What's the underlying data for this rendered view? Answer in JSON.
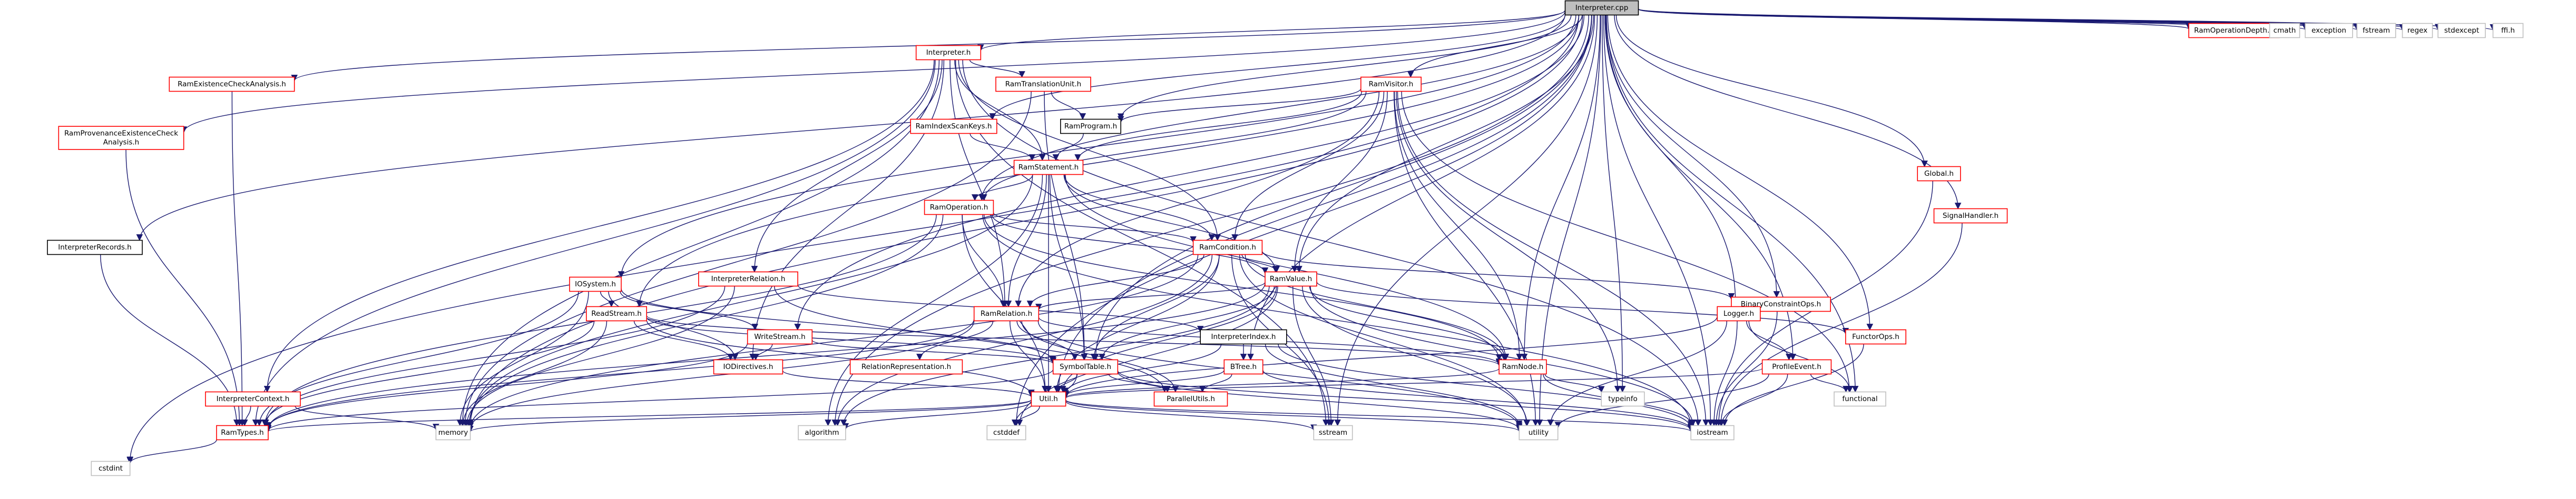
{
  "diagram_data": {
    "type": "include-dependency-graph",
    "colors": {
      "edge": "#191970",
      "border_link": "#bfbfbf",
      "border_red": "#ff0000",
      "border_black": "#000000",
      "root_fill": "#bfbfbf",
      "fill": "#ffffff",
      "text": "#000000"
    },
    "nodes": [
      {
        "id": "interpreter_cpp",
        "label": "Interpreter.cpp",
        "style": "root"
      },
      {
        "id": "ramopdepth",
        "label": "RamOperationDepth.h",
        "style": "red"
      },
      {
        "id": "cmath",
        "label": "cmath",
        "style": "gray"
      },
      {
        "id": "exception",
        "label": "exception",
        "style": "gray"
      },
      {
        "id": "fstream",
        "label": "fstream",
        "style": "gray"
      },
      {
        "id": "regex",
        "label": "regex",
        "style": "gray"
      },
      {
        "id": "stdexcept",
        "label": "stdexcept",
        "style": "gray"
      },
      {
        "id": "ffi_h",
        "label": "ffi.h",
        "style": "gray"
      },
      {
        "id": "interpreter_h",
        "label": "Interpreter.h",
        "style": "red"
      },
      {
        "id": "ramvisitor",
        "label": "RamVisitor.h",
        "style": "red"
      },
      {
        "id": "ramprovenance",
        "label": "RamProvenanceExistenceCheck\nAnalysis.h",
        "style": "red"
      },
      {
        "id": "ramexistence",
        "label": "RamExistenceCheckAnalysis.h",
        "style": "red"
      },
      {
        "id": "ramtranslation",
        "label": "RamTranslationUnit.h",
        "style": "red"
      },
      {
        "id": "ramindexscankeys",
        "label": "RamIndexScanKeys.h",
        "style": "red"
      },
      {
        "id": "ramprogram",
        "label": "RamProgram.h",
        "style": "black"
      },
      {
        "id": "ramstatement",
        "label": "RamStatement.h",
        "style": "red"
      },
      {
        "id": "ramoperation",
        "label": "RamOperation.h",
        "style": "red"
      },
      {
        "id": "ramcondition",
        "label": "RamCondition.h",
        "style": "red"
      },
      {
        "id": "interpreterrecords",
        "label": "InterpreterRecords.h",
        "style": "black"
      },
      {
        "id": "interpreterrelation",
        "label": "InterpreterRelation.h",
        "style": "red"
      },
      {
        "id": "iosystem",
        "label": "IOSystem.h",
        "style": "red"
      },
      {
        "id": "readstream",
        "label": "ReadStream.h",
        "style": "red"
      },
      {
        "id": "writestream",
        "label": "WriteStream.h",
        "style": "red"
      },
      {
        "id": "iodirectives",
        "label": "IODirectives.h",
        "style": "red"
      },
      {
        "id": "interpretercontext",
        "label": "InterpreterContext.h",
        "style": "red"
      },
      {
        "id": "ramvalue",
        "label": "RamValue.h",
        "style": "red"
      },
      {
        "id": "ramrelation",
        "label": "RamRelation.h",
        "style": "red"
      },
      {
        "id": "interpreterindex",
        "label": "InterpreterIndex.h",
        "style": "black"
      },
      {
        "id": "symboltable",
        "label": "SymbolTable.h",
        "style": "red"
      },
      {
        "id": "relationrep",
        "label": "RelationRepresentation.h",
        "style": "red"
      },
      {
        "id": "btree",
        "label": "BTree.h",
        "style": "red"
      },
      {
        "id": "ramnode",
        "label": "RamNode.h",
        "style": "red"
      },
      {
        "id": "functorops",
        "label": "FunctorOps.h",
        "style": "red"
      },
      {
        "id": "binaryconstraintops",
        "label": "BinaryConstraintOps.h",
        "style": "red"
      },
      {
        "id": "logger",
        "label": "Logger.h",
        "style": "red"
      },
      {
        "id": "profileevent",
        "label": "ProfileEvent.h",
        "style": "red"
      },
      {
        "id": "global_h",
        "label": "Global.h",
        "style": "red"
      },
      {
        "id": "signalhandler",
        "label": "SignalHandler.h",
        "style": "red"
      },
      {
        "id": "util_h",
        "label": "Util.h",
        "style": "red"
      },
      {
        "id": "parallelutils",
        "label": "ParallelUtils.h",
        "style": "red"
      },
      {
        "id": "ramtypes",
        "label": "RamTypes.h",
        "style": "red"
      },
      {
        "id": "cstdint",
        "label": "cstdint",
        "style": "gray"
      },
      {
        "id": "memory",
        "label": "memory",
        "style": "gray"
      },
      {
        "id": "algorithm",
        "label": "algorithm",
        "style": "gray"
      },
      {
        "id": "cstddef",
        "label": "cstddef",
        "style": "gray"
      },
      {
        "id": "sstream",
        "label": "sstream",
        "style": "gray"
      },
      {
        "id": "utility",
        "label": "utility",
        "style": "gray"
      },
      {
        "id": "iostream",
        "label": "iostream",
        "style": "gray"
      },
      {
        "id": "typeinfo",
        "label": "typeinfo",
        "style": "gray"
      },
      {
        "id": "functional",
        "label": "functional",
        "style": "gray"
      }
    ],
    "edges": [
      [
        "interpreter_cpp",
        "ramopdepth"
      ],
      [
        "interpreter_cpp",
        "cmath"
      ],
      [
        "interpreter_cpp",
        "exception"
      ],
      [
        "interpreter_cpp",
        "fstream"
      ],
      [
        "interpreter_cpp",
        "regex"
      ],
      [
        "interpreter_cpp",
        "stdexcept"
      ],
      [
        "interpreter_cpp",
        "ffi_h"
      ],
      [
        "interpreter_cpp",
        "interpreter_h"
      ],
      [
        "interpreter_cpp",
        "ramvisitor"
      ],
      [
        "interpreter_cpp",
        "ramprovenance"
      ],
      [
        "interpreter_cpp",
        "ramexistence"
      ],
      [
        "interpreter_cpp",
        "ramindexscankeys"
      ],
      [
        "interpreter_cpp",
        "ramprogram"
      ],
      [
        "interpreter_cpp",
        "interpreterrecords"
      ],
      [
        "interpreter_cpp",
        "iosystem"
      ],
      [
        "interpreter_cpp",
        "ramoperation"
      ],
      [
        "interpreter_cpp",
        "ramvalue"
      ],
      [
        "interpreter_cpp",
        "logger"
      ],
      [
        "interpreter_cpp",
        "profileevent"
      ],
      [
        "interpreter_cpp",
        "global_h"
      ],
      [
        "interpreter_cpp",
        "signalhandler"
      ],
      [
        "interpreter_cpp",
        "functorops"
      ],
      [
        "interpreter_cpp",
        "binaryconstraintops"
      ],
      [
        "interpreter_cpp",
        "ramnode"
      ],
      [
        "interpreter_cpp",
        "btree"
      ],
      [
        "interpreter_cpp",
        "cstdint"
      ],
      [
        "interpreter_cpp",
        "memory"
      ],
      [
        "interpreter_cpp",
        "algorithm"
      ],
      [
        "interpreter_cpp",
        "utility"
      ],
      [
        "interpreter_cpp",
        "iostream"
      ],
      [
        "interpreter_cpp",
        "typeinfo"
      ],
      [
        "interpreter_cpp",
        "functional"
      ],
      [
        "interpreter_cpp",
        "util_h"
      ],
      [
        "interpreter_cpp",
        "writestream"
      ],
      [
        "interpreter_cpp",
        "readstream"
      ],
      [
        "interpreter_cpp",
        "sstream"
      ],
      [
        "interpreter_cpp",
        "cstddef"
      ],
      [
        "interpreter_cpp",
        "symboltable"
      ],
      [
        "interpreter_h",
        "ramtranslation"
      ],
      [
        "interpreter_h",
        "ramstatement"
      ],
      [
        "interpreter_h",
        "interpreterrelation"
      ],
      [
        "interpreter_h",
        "interpretercontext"
      ],
      [
        "interpreter_h",
        "ramrelation"
      ],
      [
        "interpreter_h",
        "ramcondition"
      ],
      [
        "interpreter_h",
        "iodirectives"
      ],
      [
        "interpreter_h",
        "ramtypes"
      ],
      [
        "interpreter_h",
        "memory"
      ],
      [
        "interpreter_h",
        "iostream"
      ],
      [
        "interpreter_h",
        "sstream"
      ],
      [
        "ramtranslation",
        "ramprogram"
      ],
      [
        "ramtranslation",
        "symboltable"
      ],
      [
        "ramtranslation",
        "memory"
      ],
      [
        "ramvisitor",
        "ramprogram"
      ],
      [
        "ramvisitor",
        "ramstatement"
      ],
      [
        "ramvisitor",
        "ramoperation"
      ],
      [
        "ramvisitor",
        "ramcondition"
      ],
      [
        "ramvisitor",
        "ramvalue"
      ],
      [
        "ramvisitor",
        "ramnode"
      ],
      [
        "ramvisitor",
        "ramrelation"
      ],
      [
        "ramvisitor",
        "functional"
      ],
      [
        "ramvisitor",
        "typeinfo"
      ],
      [
        "ramvisitor",
        "iostream"
      ],
      [
        "ramvisitor",
        "utility"
      ],
      [
        "ramprovenance",
        "ramtypes"
      ],
      [
        "ramexistence",
        "ramtypes"
      ],
      [
        "ramindexscankeys",
        "ramstatement"
      ],
      [
        "ramprogram",
        "ramstatement"
      ],
      [
        "ramstatement",
        "ramoperation"
      ],
      [
        "ramstatement",
        "ramrelation"
      ],
      [
        "ramstatement",
        "ramvalue"
      ],
      [
        "ramstatement",
        "ramnode"
      ],
      [
        "ramstatement",
        "ramcondition"
      ],
      [
        "ramstatement",
        "symboltable"
      ],
      [
        "ramstatement",
        "util_h"
      ],
      [
        "ramstatement",
        "memory"
      ],
      [
        "ramstatement",
        "algorithm"
      ],
      [
        "ramoperation",
        "ramcondition"
      ],
      [
        "ramoperation",
        "ramrelation"
      ],
      [
        "ramoperation",
        "ramvalue"
      ],
      [
        "ramoperation",
        "ramnode"
      ],
      [
        "ramoperation",
        "util_h"
      ],
      [
        "ramoperation",
        "ramtypes"
      ],
      [
        "ramoperation",
        "memory"
      ],
      [
        "ramoperation",
        "iostream"
      ],
      [
        "ramcondition",
        "ramvalue"
      ],
      [
        "ramcondition",
        "ramrelation"
      ],
      [
        "ramcondition",
        "ramnode"
      ],
      [
        "ramcondition",
        "binaryconstraintops"
      ],
      [
        "ramcondition",
        "symboltable"
      ],
      [
        "ramcondition",
        "util_h"
      ],
      [
        "ramcondition",
        "memory"
      ],
      [
        "ramcondition",
        "algorithm"
      ],
      [
        "ramcondition",
        "utility"
      ],
      [
        "ramcondition",
        "sstream"
      ],
      [
        "interpreterrecords",
        "ramtypes"
      ],
      [
        "interpreterrelation",
        "interpreterindex"
      ],
      [
        "interpreterrelation",
        "ramtypes"
      ],
      [
        "interpreterrelation",
        "parallelutils"
      ],
      [
        "interpreterrelation",
        "memory"
      ],
      [
        "iosystem",
        "readstream"
      ],
      [
        "iosystem",
        "writestream"
      ],
      [
        "iosystem",
        "iodirectives"
      ],
      [
        "iosystem",
        "symboltable"
      ],
      [
        "iosystem",
        "ramtypes"
      ],
      [
        "iosystem",
        "memory"
      ],
      [
        "readstream",
        "iodirectives"
      ],
      [
        "readstream",
        "symboltable"
      ],
      [
        "readstream",
        "ramtypes"
      ],
      [
        "readstream",
        "ramnode"
      ],
      [
        "readstream",
        "memory"
      ],
      [
        "readstream",
        "util_h"
      ],
      [
        "writestream",
        "iodirectives"
      ],
      [
        "writestream",
        "symboltable"
      ],
      [
        "writestream",
        "ramtypes"
      ],
      [
        "iodirectives",
        "util_h"
      ],
      [
        "interpretercontext",
        "ramtypes"
      ],
      [
        "interpretercontext",
        "memory"
      ],
      [
        "ramvalue",
        "ramrelation"
      ],
      [
        "ramvalue",
        "ramnode"
      ],
      [
        "ramvalue",
        "functorops"
      ],
      [
        "ramvalue",
        "symboltable"
      ],
      [
        "ramvalue",
        "util_h"
      ],
      [
        "ramvalue",
        "ramtypes"
      ],
      [
        "ramvalue",
        "algorithm"
      ],
      [
        "ramvalue",
        "cstddef"
      ],
      [
        "ramvalue",
        "sstream"
      ],
      [
        "ramvalue",
        "utility"
      ],
      [
        "ramvalue",
        "iostream"
      ],
      [
        "ramrelation",
        "relationrep"
      ],
      [
        "ramrelation",
        "symboltable"
      ],
      [
        "ramrelation",
        "ramnode"
      ],
      [
        "ramrelation",
        "util_h"
      ],
      [
        "ramrelation",
        "ramtypes"
      ],
      [
        "ramrelation",
        "parallelutils"
      ],
      [
        "ramrelation",
        "utility"
      ],
      [
        "ramrelation",
        "memory"
      ],
      [
        "interpreterindex",
        "btree"
      ],
      [
        "interpreterindex",
        "util_h"
      ],
      [
        "interpreterindex",
        "utility"
      ],
      [
        "interpreterindex",
        "iostream"
      ],
      [
        "symboltable",
        "util_h"
      ],
      [
        "symboltable",
        "parallelutils"
      ],
      [
        "symboltable",
        "ramtypes"
      ],
      [
        "symboltable",
        "iostream"
      ],
      [
        "symboltable",
        "utility"
      ],
      [
        "symboltable",
        "cstddef"
      ],
      [
        "btree",
        "util_h"
      ],
      [
        "btree",
        "parallelutils"
      ],
      [
        "btree",
        "iostream"
      ],
      [
        "ramnode",
        "typeinfo"
      ],
      [
        "ramnode",
        "iostream"
      ],
      [
        "ramnode",
        "util_h"
      ],
      [
        "functorops",
        "iostream"
      ],
      [
        "binaryconstraintops",
        "iostream"
      ],
      [
        "logger",
        "profileevent"
      ],
      [
        "logger",
        "util_h"
      ],
      [
        "logger",
        "iostream"
      ],
      [
        "logger",
        "functional"
      ],
      [
        "logger",
        "utility"
      ],
      [
        "profileevent",
        "util_h"
      ],
      [
        "profileevent",
        "iostream"
      ],
      [
        "profileevent",
        "functional"
      ],
      [
        "profileevent",
        "utility"
      ],
      [
        "global_h",
        "iostream"
      ],
      [
        "signalhandler",
        "iostream"
      ],
      [
        "util_h",
        "ramtypes"
      ],
      [
        "util_h",
        "algorithm"
      ],
      [
        "util_h",
        "cstddef"
      ],
      [
        "util_h",
        "sstream"
      ],
      [
        "util_h",
        "utility"
      ],
      [
        "util_h",
        "iostream"
      ],
      [
        "util_h",
        "memory"
      ],
      [
        "ramtypes",
        "cstdint"
      ]
    ]
  }
}
